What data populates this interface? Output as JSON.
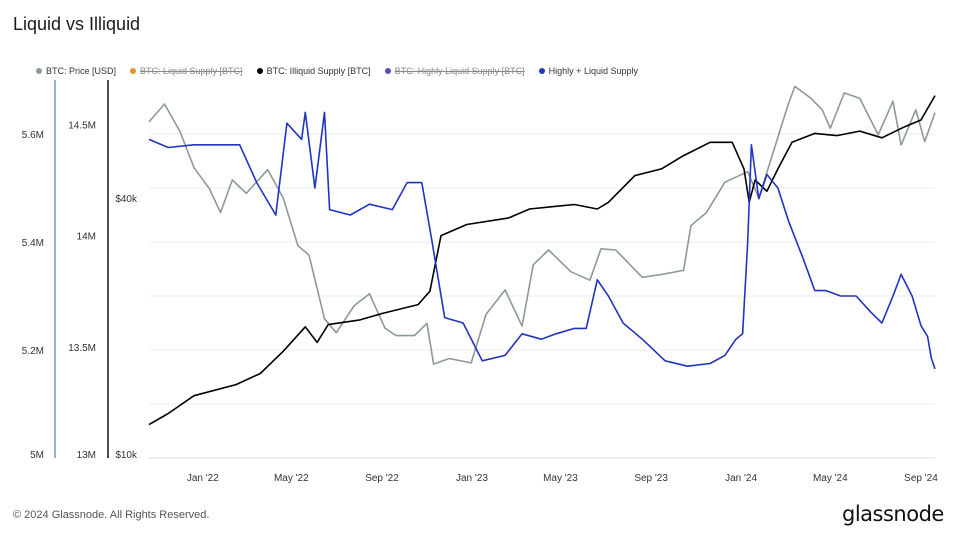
{
  "chart_data": {
    "type": "line",
    "title": "Liquid vs Illiquid",
    "legend_placement": "top-left",
    "grid": true,
    "x_tick_labels": [
      "Jan '22",
      "May '22",
      "Sep '22",
      "Jan '23",
      "May '23",
      "Sep '23",
      "Jan '24",
      "May '24",
      "Sep '24"
    ],
    "xlim": [
      "2021-10-20",
      "2024-09-20"
    ],
    "axes": [
      {
        "id": "liquid",
        "ticks": [
          "5M",
          "5.2M",
          "5.4M",
          "5.6M"
        ],
        "range": [
          5000000,
          5700000
        ],
        "color": "#6f8fb0"
      },
      {
        "id": "illiquid",
        "ticks": [
          "13M",
          "13.5M",
          "14M",
          "14.5M"
        ],
        "range": [
          13000000,
          14700000
        ],
        "color": "#000000"
      },
      {
        "id": "price",
        "ticks": [
          "$10k",
          "$40k"
        ],
        "range": [
          10000,
          75000
        ],
        "scale": "log",
        "color": "#999999"
      }
    ],
    "series": [
      {
        "name": "BTC: Price [USD]",
        "color": "#8c9a96",
        "visible": true,
        "axis": "price",
        "points": [
          [
            "2021-10-20",
            60000
          ],
          [
            "2021-11-10",
            66000
          ],
          [
            "2021-12-01",
            57000
          ],
          [
            "2021-12-20",
            47000
          ],
          [
            "2022-01-10",
            42000
          ],
          [
            "2022-01-25",
            37000
          ],
          [
            "2022-02-10",
            44000
          ],
          [
            "2022-03-01",
            41000
          ],
          [
            "2022-03-30",
            46500
          ],
          [
            "2022-04-20",
            40000
          ],
          [
            "2022-05-10",
            31000
          ],
          [
            "2022-05-25",
            29500
          ],
          [
            "2022-06-15",
            21000
          ],
          [
            "2022-07-01",
            19500
          ],
          [
            "2022-07-25",
            22500
          ],
          [
            "2022-08-15",
            24000
          ],
          [
            "2022-09-05",
            20000
          ],
          [
            "2022-09-20",
            19200
          ],
          [
            "2022-10-15",
            19200
          ],
          [
            "2022-11-01",
            20500
          ],
          [
            "2022-11-10",
            16500
          ],
          [
            "2022-12-01",
            17000
          ],
          [
            "2022-12-31",
            16600
          ],
          [
            "2023-01-20",
            21500
          ],
          [
            "2023-02-15",
            24500
          ],
          [
            "2023-03-10",
            20200
          ],
          [
            "2023-03-25",
            28000
          ],
          [
            "2023-04-15",
            30300
          ],
          [
            "2023-05-15",
            27000
          ],
          [
            "2023-06-10",
            25800
          ],
          [
            "2023-06-25",
            30500
          ],
          [
            "2023-07-15",
            30300
          ],
          [
            "2023-08-20",
            26200
          ],
          [
            "2023-09-15",
            26600
          ],
          [
            "2023-10-15",
            27200
          ],
          [
            "2023-10-25",
            34500
          ],
          [
            "2023-11-15",
            37000
          ],
          [
            "2023-12-10",
            43500
          ],
          [
            "2024-01-10",
            46000
          ],
          [
            "2024-01-25",
            40000
          ],
          [
            "2024-02-15",
            52000
          ],
          [
            "2024-03-05",
            66000
          ],
          [
            "2024-03-14",
            72500
          ],
          [
            "2024-04-05",
            68000
          ],
          [
            "2024-04-20",
            64000
          ],
          [
            "2024-05-01",
            58000
          ],
          [
            "2024-05-20",
            70000
          ],
          [
            "2024-06-10",
            68000
          ],
          [
            "2024-07-05",
            56000
          ],
          [
            "2024-07-25",
            67000
          ],
          [
            "2024-08-05",
            53000
          ],
          [
            "2024-08-25",
            64000
          ],
          [
            "2024-09-06",
            54000
          ],
          [
            "2024-09-20",
            63000
          ]
        ]
      },
      {
        "name": "BTC: Liquid Supply [BTC]",
        "color": "#e0952b",
        "visible": false,
        "axis": "liquid",
        "points": []
      },
      {
        "name": "BTC: Illiquid Supply [BTC]",
        "color": "#000000",
        "visible": true,
        "axis": "illiquid",
        "points": [
          [
            "2021-10-20",
            13150000
          ],
          [
            "2021-11-15",
            13200000
          ],
          [
            "2021-12-20",
            13280000
          ],
          [
            "2022-02-15",
            13330000
          ],
          [
            "2022-03-20",
            13380000
          ],
          [
            "2022-04-20",
            13480000
          ],
          [
            "2022-05-20",
            13590000
          ],
          [
            "2022-06-05",
            13520000
          ],
          [
            "2022-06-20",
            13600000
          ],
          [
            "2022-08-01",
            13620000
          ],
          [
            "2022-09-01",
            13650000
          ],
          [
            "2022-10-20",
            13690000
          ],
          [
            "2022-11-05",
            13750000
          ],
          [
            "2022-11-20",
            14000000
          ],
          [
            "2022-12-25",
            14050000
          ],
          [
            "2023-02-20",
            14080000
          ],
          [
            "2023-03-20",
            14120000
          ],
          [
            "2023-04-20",
            14130000
          ],
          [
            "2023-05-20",
            14140000
          ],
          [
            "2023-06-20",
            14120000
          ],
          [
            "2023-07-05",
            14150000
          ],
          [
            "2023-08-10",
            14270000
          ],
          [
            "2023-09-15",
            14300000
          ],
          [
            "2023-10-15",
            14360000
          ],
          [
            "2023-11-20",
            14420000
          ],
          [
            "2023-12-20",
            14420000
          ],
          [
            "2024-01-05",
            14300000
          ],
          [
            "2024-01-12",
            14150000
          ],
          [
            "2024-01-20",
            14250000
          ],
          [
            "2024-02-05",
            14200000
          ],
          [
            "2024-02-20",
            14300000
          ],
          [
            "2024-03-10",
            14420000
          ],
          [
            "2024-04-10",
            14460000
          ],
          [
            "2024-05-10",
            14450000
          ],
          [
            "2024-06-10",
            14470000
          ],
          [
            "2024-07-10",
            14440000
          ],
          [
            "2024-08-10",
            14490000
          ],
          [
            "2024-09-01",
            14520000
          ],
          [
            "2024-09-20",
            14630000
          ]
        ]
      },
      {
        "name": "BTC: Highly Liquid Supply [BTC]",
        "color": "#5b4fbf",
        "visible": false,
        "axis": "liquid",
        "points": []
      },
      {
        "name": "Highly + Liquid Supply",
        "color": "#2233c0",
        "visible": true,
        "axis": "liquid",
        "points": [
          [
            "2021-10-20",
            5590000
          ],
          [
            "2021-11-15",
            5575000
          ],
          [
            "2021-12-20",
            5580000
          ],
          [
            "2022-01-20",
            5580000
          ],
          [
            "2022-02-20",
            5580000
          ],
          [
            "2022-03-15",
            5510000
          ],
          [
            "2022-04-10",
            5450000
          ],
          [
            "2022-04-25",
            5620000
          ],
          [
            "2022-05-15",
            5590000
          ],
          [
            "2022-05-20",
            5640000
          ],
          [
            "2022-06-02",
            5500000
          ],
          [
            "2022-06-15",
            5640000
          ],
          [
            "2022-06-22",
            5460000
          ],
          [
            "2022-07-20",
            5450000
          ],
          [
            "2022-08-15",
            5470000
          ],
          [
            "2022-09-15",
            5460000
          ],
          [
            "2022-10-05",
            5510000
          ],
          [
            "2022-10-25",
            5510000
          ],
          [
            "2022-11-08",
            5400000
          ],
          [
            "2022-11-25",
            5260000
          ],
          [
            "2022-12-20",
            5250000
          ],
          [
            "2023-01-15",
            5180000
          ],
          [
            "2023-02-15",
            5190000
          ],
          [
            "2023-03-10",
            5230000
          ],
          [
            "2023-04-05",
            5220000
          ],
          [
            "2023-04-25",
            5230000
          ],
          [
            "2023-05-20",
            5240000
          ],
          [
            "2023-06-05",
            5240000
          ],
          [
            "2023-06-20",
            5330000
          ],
          [
            "2023-07-05",
            5300000
          ],
          [
            "2023-07-25",
            5250000
          ],
          [
            "2023-08-20",
            5220000
          ],
          [
            "2023-09-20",
            5180000
          ],
          [
            "2023-10-20",
            5170000
          ],
          [
            "2023-11-20",
            5175000
          ],
          [
            "2023-12-10",
            5190000
          ],
          [
            "2023-12-25",
            5220000
          ],
          [
            "2024-01-03",
            5230000
          ],
          [
            "2024-01-10",
            5400000
          ],
          [
            "2024-01-15",
            5580000
          ],
          [
            "2024-01-25",
            5480000
          ],
          [
            "2024-02-05",
            5525000
          ],
          [
            "2024-02-20",
            5500000
          ],
          [
            "2024-03-05",
            5440000
          ],
          [
            "2024-03-25",
            5370000
          ],
          [
            "2024-04-10",
            5310000
          ],
          [
            "2024-04-25",
            5310000
          ],
          [
            "2024-05-15",
            5300000
          ],
          [
            "2024-06-05",
            5300000
          ],
          [
            "2024-06-25",
            5270000
          ],
          [
            "2024-07-10",
            5250000
          ],
          [
            "2024-07-25",
            5300000
          ],
          [
            "2024-08-05",
            5340000
          ],
          [
            "2024-08-20",
            5300000
          ],
          [
            "2024-09-01",
            5245000
          ],
          [
            "2024-09-10",
            5225000
          ],
          [
            "2024-09-15",
            5185000
          ],
          [
            "2024-09-20",
            5165000
          ]
        ]
      }
    ]
  },
  "footer": {
    "copyright": "© 2024 Glassnode. All Rights Reserved.",
    "brand": "glassnode"
  }
}
